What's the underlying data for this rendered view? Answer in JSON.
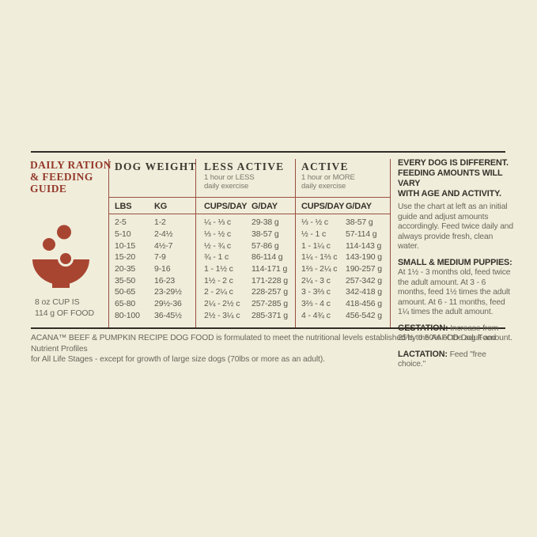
{
  "colors": {
    "background": "#f0eddb",
    "accent_red_title": "#943829",
    "bowl_red": "#a84531",
    "divider_red": "#9b4f3f",
    "frame_dark": "#312d26",
    "text_dark": "#36322a",
    "text_gray": "#6b665a"
  },
  "left_panel": {
    "title_line1": "DAILY RATION",
    "title_line2": "& FEEDING",
    "title_line3": "GUIDE",
    "cup_note_line1": "8 oz CUP IS",
    "cup_note_line2": "114 g OF FOOD"
  },
  "dog_weight": {
    "header": "DOG WEIGHT",
    "col_lbs": "LBS",
    "col_kg": "KG",
    "rows": [
      [
        "2-5",
        "1-2"
      ],
      [
        "5-10",
        "2-4½"
      ],
      [
        "10-15",
        "4½-7"
      ],
      [
        "15-20",
        "7-9"
      ],
      [
        "20-35",
        "9-16"
      ],
      [
        "35-50",
        "16-23"
      ],
      [
        "50-65",
        "23-29½"
      ],
      [
        "65-80",
        "29½-36"
      ],
      [
        "80-100",
        "36-45½"
      ]
    ]
  },
  "less_active": {
    "header": "LESS ACTIVE",
    "sub_line1": "1 hour or LESS",
    "sub_line2": "daily exercise",
    "col_cups": "CUPS/DAY",
    "col_grams": "G/DAY",
    "rows": [
      [
        "¼ - ⅓ c",
        "29-38 g"
      ],
      [
        "⅓ - ½ c",
        "38-57 g"
      ],
      [
        "½ - ¾ c",
        "57-86 g"
      ],
      [
        "¾ - 1 c",
        "86-114 g"
      ],
      [
        "1 - 1½ c",
        "114-171 g"
      ],
      [
        "1½ - 2 c",
        "171-228 g"
      ],
      [
        "2 - 2¼ c",
        "228-257 g"
      ],
      [
        "2¼ - 2½ c",
        "257-285 g"
      ],
      [
        "2½ - 3¼ c",
        "285-371 g"
      ]
    ]
  },
  "active": {
    "header": "ACTIVE",
    "sub_line1": "1 hour or MORE",
    "sub_line2": "daily exercise",
    "col_cups": "CUPS/DAY",
    "col_grams": "G/DAY",
    "rows": [
      [
        "⅓ - ½ c",
        "38-57 g"
      ],
      [
        "½ - 1 c",
        "57-114 g"
      ],
      [
        "1 - 1¼ c",
        "114-143 g"
      ],
      [
        "1¼ - 1⅔ c",
        "143-190 g"
      ],
      [
        "1⅔ - 2¼ c",
        "190-257 g"
      ],
      [
        "2¼ - 3 c",
        "257-342 g"
      ],
      [
        "3 - 3⅔ c",
        "342-418 g"
      ],
      [
        "3⅔ - 4 c",
        "418-456 g"
      ],
      [
        "4 - 4¾ c",
        "456-542 g"
      ]
    ]
  },
  "info_panel": {
    "heading_line1": "EVERY DOG IS DIFFERENT.",
    "heading_line2": "FEEDING AMOUNTS WILL VARY",
    "heading_line3": "WITH AGE AND ACTIVITY.",
    "intro": "Use the chart at left as an initial guide and adjust amounts accordingly. Feed twice daily and always provide fresh, clean water.",
    "puppies_heading": "SMALL & MEDIUM PUPPIES:",
    "puppies_text": "At 1½ - 3 months old, feed twice the adult amount. At 3 - 6 months, feed 1½ times the adult amount. At 6 - 11 months, feed 1¼ times the adult amount.",
    "gestation_label": "GESTATION:",
    "gestation_text": " Increase from 25% to 50% of the adult amount.",
    "lactation_label": "LACTATION:",
    "lactation_text": " Feed \"free choice.\""
  },
  "footnote": {
    "line1": "ACANA™ BEEF & PUMPKIN RECIPE DOG FOOD is formulated to meet the nutritional levels established by the AAFCO Dog Food Nutrient Profiles",
    "line2": "for All Life Stages - except for growth of large size dogs (70lbs or more as an adult)."
  }
}
